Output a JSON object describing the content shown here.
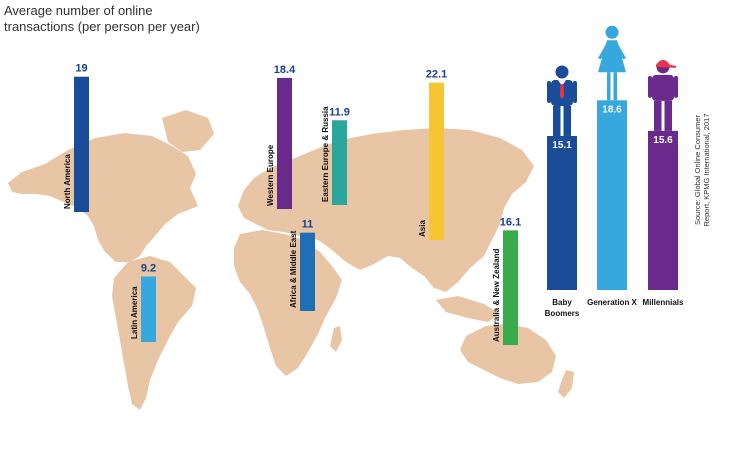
{
  "title_lines": [
    "Average number of online",
    "transactions (per person per year)"
  ],
  "source": [
    "Source: Global Online Consumer",
    "Report, KPMG International, 2017"
  ],
  "colors": {
    "map": "#e8c5a5",
    "value_label": "#1a3f8e",
    "bar_value_text": "#ffffff",
    "label_text": "#111111"
  },
  "chart_data": [
    {
      "type": "bar",
      "name": "regions",
      "categories": [
        "North America",
        "Latin America",
        "Western Europe",
        "Africa & Middle East",
        "Eastern Europe & Russia",
        "Asia",
        "Australia & New Zealand"
      ],
      "values": [
        19,
        9.2,
        18.4,
        11,
        11.9,
        22.1,
        16.1
      ],
      "value_labels": [
        "19",
        "9.2",
        "18.4",
        "11",
        "11.9",
        "22.1",
        "16.1"
      ],
      "colors": [
        "#1a4c9a",
        "#37a8dd",
        "#6a2a8c",
        "#1f6fb6",
        "#2aa79b",
        "#f6c533",
        "#3aab4c"
      ]
    },
    {
      "type": "bar",
      "name": "generations",
      "categories": [
        "Baby Boomers",
        "Generation X",
        "Millennials"
      ],
      "category_lines": [
        [
          "Baby",
          "Boomers"
        ],
        [
          "Generation X"
        ],
        [
          "Millennials"
        ]
      ],
      "values": [
        15.1,
        18.6,
        15.6
      ],
      "value_labels": [
        "15.1",
        "18.6",
        "15.6"
      ],
      "colors": [
        "#1a4c9a",
        "#37a8dd",
        "#6a2a8c"
      ],
      "icons": [
        "man-with-tie-icon",
        "woman-icon",
        "person-with-cap-icon"
      ]
    }
  ]
}
